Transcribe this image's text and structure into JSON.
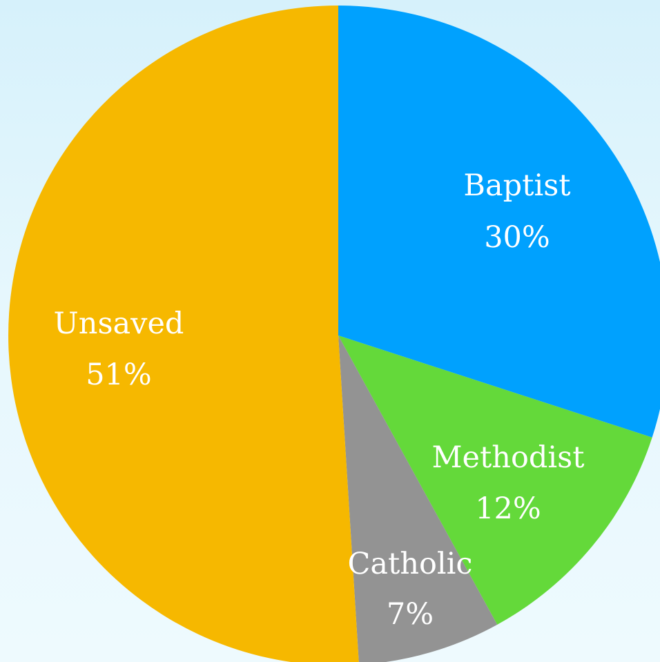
{
  "chart_data": {
    "type": "pie",
    "start_angle_deg": 0,
    "direction": "clockwise",
    "slices": [
      {
        "label": "Baptist",
        "value": 30,
        "value_label": "30%",
        "color": "#00a1fe"
      },
      {
        "label": "Methodist",
        "value": 12,
        "value_label": "12%",
        "color": "#64d93a"
      },
      {
        "label": "Catholic",
        "value": 7,
        "value_label": "7%",
        "color": "#939393"
      },
      {
        "label": "Unsaved",
        "value": 51,
        "value_label": "51%",
        "color": "#f6b800"
      }
    ]
  }
}
